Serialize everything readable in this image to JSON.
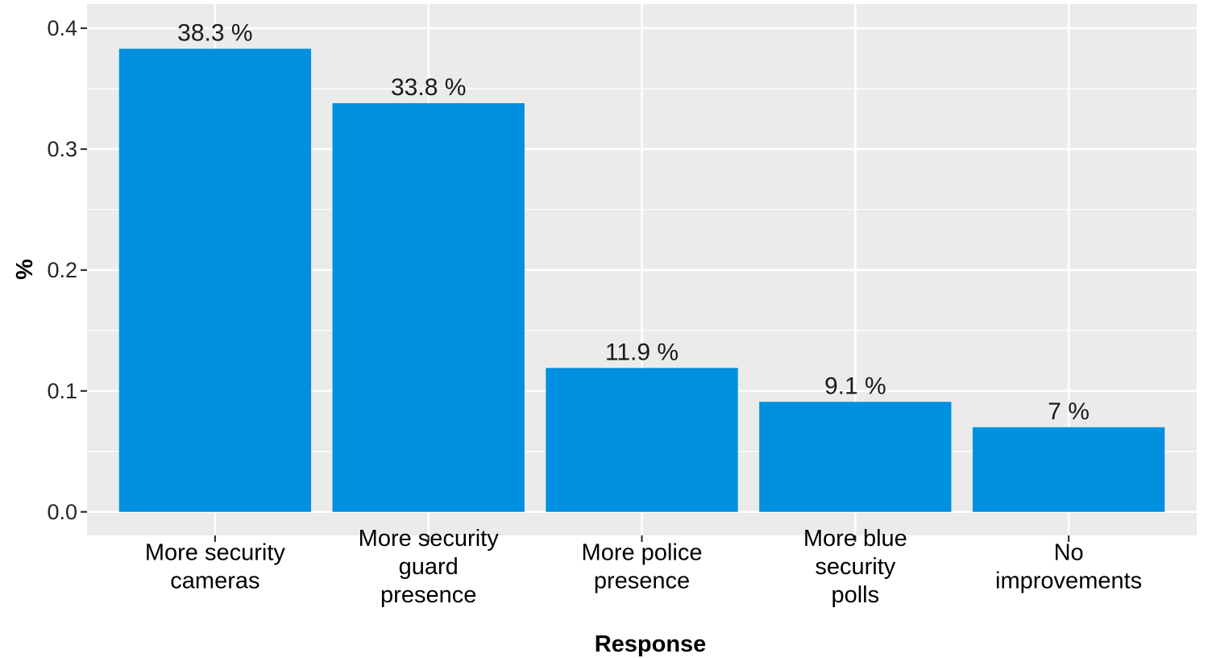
{
  "chart_data": {
    "type": "bar",
    "categories": [
      [
        "More security",
        "cameras"
      ],
      [
        "More security",
        "guard",
        "presence"
      ],
      [
        "More police",
        "presence"
      ],
      [
        "More blue",
        "security",
        "polls"
      ],
      [
        "No",
        "improvements"
      ]
    ],
    "values": [
      0.383,
      0.338,
      0.119,
      0.091,
      0.07
    ],
    "data_labels": [
      "38.3 %",
      "33.8 %",
      "11.9 %",
      "9.1 %",
      "7 %"
    ],
    "xlabel": "Response",
    "ylabel": "%",
    "ylim": [
      -0.0195,
      0.42
    ],
    "yticks": [
      0.0,
      0.1,
      0.2,
      0.3,
      0.4
    ],
    "ytick_labels": [
      "0.0",
      "0.1",
      "0.2",
      "0.3",
      "0.4"
    ],
    "grid": true,
    "legend": "none",
    "colors": {
      "bar": "#0090df",
      "panel": "#ebebeb",
      "grid": "#ffffff"
    }
  }
}
